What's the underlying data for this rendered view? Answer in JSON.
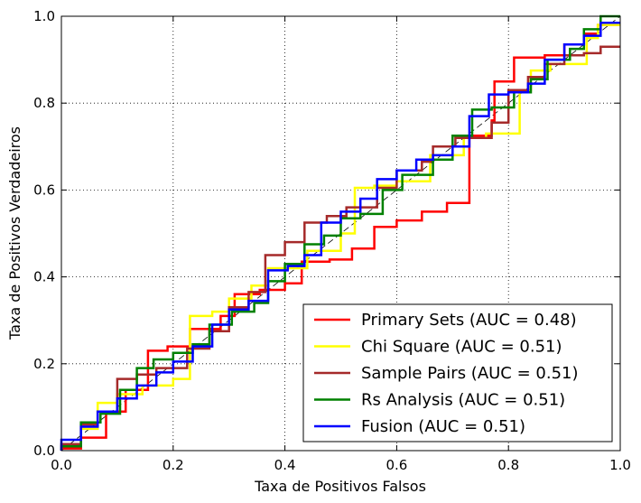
{
  "chart_data": {
    "type": "line",
    "title": "",
    "xlabel": "Taxa de Positivos Falsos",
    "ylabel": "Taxa de Positivos Verdadeiros",
    "xlim": [
      0.0,
      1.0
    ],
    "ylim": [
      0.0,
      1.0
    ],
    "xticks": [
      0.0,
      0.2,
      0.4,
      0.6,
      0.8,
      1.0
    ],
    "yticks": [
      0.0,
      0.2,
      0.4,
      0.6,
      0.8,
      1.0
    ],
    "xtick_labels": [
      "0.0",
      "0.2",
      "0.4",
      "0.6",
      "0.8",
      "1.0"
    ],
    "ytick_labels": [
      "0.0",
      "0.2",
      "0.4",
      "0.6",
      "0.8",
      "1.0"
    ],
    "grid": true,
    "legend_position": "lower-right",
    "diagonal_reference": true,
    "series": [
      {
        "name": "Primary Sets (AUC = 0.48)",
        "color": "#ff0000",
        "points": [
          [
            0.0,
            0.0
          ],
          [
            0.0,
            0.005
          ],
          [
            0.035,
            0.005
          ],
          [
            0.035,
            0.03
          ],
          [
            0.08,
            0.03
          ],
          [
            0.08,
            0.09
          ],
          [
            0.115,
            0.09
          ],
          [
            0.115,
            0.14
          ],
          [
            0.155,
            0.14
          ],
          [
            0.155,
            0.19
          ],
          [
            0.155,
            0.23
          ],
          [
            0.19,
            0.23
          ],
          [
            0.19,
            0.24
          ],
          [
            0.23,
            0.24
          ],
          [
            0.23,
            0.28
          ],
          [
            0.285,
            0.28
          ],
          [
            0.285,
            0.31
          ],
          [
            0.31,
            0.31
          ],
          [
            0.31,
            0.36
          ],
          [
            0.355,
            0.36
          ],
          [
            0.355,
            0.37
          ],
          [
            0.4,
            0.37
          ],
          [
            0.4,
            0.385
          ],
          [
            0.43,
            0.385
          ],
          [
            0.43,
            0.435
          ],
          [
            0.48,
            0.435
          ],
          [
            0.48,
            0.44
          ],
          [
            0.52,
            0.44
          ],
          [
            0.52,
            0.465
          ],
          [
            0.56,
            0.465
          ],
          [
            0.56,
            0.515
          ],
          [
            0.6,
            0.515
          ],
          [
            0.6,
            0.53
          ],
          [
            0.645,
            0.53
          ],
          [
            0.645,
            0.55
          ],
          [
            0.69,
            0.55
          ],
          [
            0.69,
            0.57
          ],
          [
            0.73,
            0.57
          ],
          [
            0.73,
            0.725
          ],
          [
            0.77,
            0.725
          ],
          [
            0.77,
            0.76
          ],
          [
            0.775,
            0.76
          ],
          [
            0.775,
            0.85
          ],
          [
            0.81,
            0.85
          ],
          [
            0.81,
            0.905
          ],
          [
            0.865,
            0.905
          ],
          [
            0.865,
            0.91
          ],
          [
            0.9,
            0.91
          ],
          [
            0.9,
            0.935
          ],
          [
            0.935,
            0.935
          ],
          [
            0.935,
            0.96
          ],
          [
            0.96,
            0.96
          ],
          [
            0.96,
            0.98
          ],
          [
            1.0,
            0.98
          ]
        ]
      },
      {
        "name": "Chi Square (AUC = 0.51)",
        "color": "#ffff00",
        "points": [
          [
            0.0,
            0.0
          ],
          [
            0.0,
            0.015
          ],
          [
            0.035,
            0.015
          ],
          [
            0.035,
            0.05
          ],
          [
            0.065,
            0.05
          ],
          [
            0.065,
            0.11
          ],
          [
            0.1,
            0.11
          ],
          [
            0.1,
            0.13
          ],
          [
            0.145,
            0.13
          ],
          [
            0.145,
            0.15
          ],
          [
            0.2,
            0.15
          ],
          [
            0.2,
            0.165
          ],
          [
            0.23,
            0.165
          ],
          [
            0.23,
            0.31
          ],
          [
            0.27,
            0.31
          ],
          [
            0.27,
            0.32
          ],
          [
            0.3,
            0.32
          ],
          [
            0.3,
            0.35
          ],
          [
            0.34,
            0.35
          ],
          [
            0.34,
            0.38
          ],
          [
            0.37,
            0.38
          ],
          [
            0.37,
            0.42
          ],
          [
            0.44,
            0.42
          ],
          [
            0.44,
            0.46
          ],
          [
            0.5,
            0.46
          ],
          [
            0.5,
            0.5
          ],
          [
            0.525,
            0.5
          ],
          [
            0.525,
            0.605
          ],
          [
            0.56,
            0.605
          ],
          [
            0.56,
            0.61
          ],
          [
            0.6,
            0.61
          ],
          [
            0.6,
            0.62
          ],
          [
            0.66,
            0.62
          ],
          [
            0.66,
            0.68
          ],
          [
            0.72,
            0.68
          ],
          [
            0.72,
            0.72
          ],
          [
            0.76,
            0.72
          ],
          [
            0.76,
            0.73
          ],
          [
            0.82,
            0.73
          ],
          [
            0.82,
            0.83
          ],
          [
            0.84,
            0.83
          ],
          [
            0.84,
            0.875
          ],
          [
            0.875,
            0.875
          ],
          [
            0.875,
            0.89
          ],
          [
            0.94,
            0.89
          ],
          [
            0.94,
            0.95
          ],
          [
            0.96,
            0.95
          ],
          [
            0.96,
            0.98
          ],
          [
            1.0,
            0.98
          ]
        ]
      },
      {
        "name": "Sample Pairs (AUC = 0.51)",
        "color": "#a52a2a",
        "points": [
          [
            0.0,
            0.0
          ],
          [
            0.0,
            0.015
          ],
          [
            0.035,
            0.015
          ],
          [
            0.035,
            0.06
          ],
          [
            0.065,
            0.06
          ],
          [
            0.065,
            0.09
          ],
          [
            0.1,
            0.09
          ],
          [
            0.1,
            0.165
          ],
          [
            0.135,
            0.165
          ],
          [
            0.135,
            0.175
          ],
          [
            0.17,
            0.175
          ],
          [
            0.17,
            0.19
          ],
          [
            0.225,
            0.19
          ],
          [
            0.225,
            0.235
          ],
          [
            0.265,
            0.235
          ],
          [
            0.265,
            0.275
          ],
          [
            0.3,
            0.275
          ],
          [
            0.3,
            0.33
          ],
          [
            0.335,
            0.33
          ],
          [
            0.335,
            0.365
          ],
          [
            0.365,
            0.365
          ],
          [
            0.365,
            0.45
          ],
          [
            0.4,
            0.45
          ],
          [
            0.4,
            0.48
          ],
          [
            0.435,
            0.48
          ],
          [
            0.435,
            0.525
          ],
          [
            0.475,
            0.525
          ],
          [
            0.475,
            0.54
          ],
          [
            0.51,
            0.54
          ],
          [
            0.51,
            0.56
          ],
          [
            0.565,
            0.56
          ],
          [
            0.565,
            0.605
          ],
          [
            0.6,
            0.605
          ],
          [
            0.6,
            0.645
          ],
          [
            0.645,
            0.645
          ],
          [
            0.645,
            0.665
          ],
          [
            0.665,
            0.665
          ],
          [
            0.665,
            0.7
          ],
          [
            0.705,
            0.7
          ],
          [
            0.705,
            0.72
          ],
          [
            0.77,
            0.72
          ],
          [
            0.77,
            0.755
          ],
          [
            0.8,
            0.755
          ],
          [
            0.8,
            0.83
          ],
          [
            0.835,
            0.83
          ],
          [
            0.835,
            0.86
          ],
          [
            0.865,
            0.86
          ],
          [
            0.865,
            0.89
          ],
          [
            0.9,
            0.89
          ],
          [
            0.9,
            0.91
          ],
          [
            0.935,
            0.91
          ],
          [
            0.935,
            0.915
          ],
          [
            0.965,
            0.915
          ],
          [
            0.965,
            0.93
          ],
          [
            1.0,
            0.93
          ]
        ]
      },
      {
        "name": "Rs Analysis (AUC = 0.51)",
        "color": "#008000",
        "points": [
          [
            0.0,
            0.0
          ],
          [
            0.0,
            0.01
          ],
          [
            0.035,
            0.01
          ],
          [
            0.035,
            0.065
          ],
          [
            0.07,
            0.065
          ],
          [
            0.07,
            0.085
          ],
          [
            0.105,
            0.085
          ],
          [
            0.105,
            0.14
          ],
          [
            0.135,
            0.14
          ],
          [
            0.135,
            0.19
          ],
          [
            0.165,
            0.19
          ],
          [
            0.165,
            0.21
          ],
          [
            0.2,
            0.21
          ],
          [
            0.2,
            0.225
          ],
          [
            0.235,
            0.225
          ],
          [
            0.235,
            0.245
          ],
          [
            0.265,
            0.245
          ],
          [
            0.265,
            0.29
          ],
          [
            0.305,
            0.29
          ],
          [
            0.305,
            0.32
          ],
          [
            0.345,
            0.32
          ],
          [
            0.345,
            0.34
          ],
          [
            0.37,
            0.34
          ],
          [
            0.37,
            0.39
          ],
          [
            0.4,
            0.39
          ],
          [
            0.4,
            0.43
          ],
          [
            0.435,
            0.43
          ],
          [
            0.435,
            0.475
          ],
          [
            0.47,
            0.475
          ],
          [
            0.47,
            0.495
          ],
          [
            0.5,
            0.495
          ],
          [
            0.5,
            0.535
          ],
          [
            0.535,
            0.535
          ],
          [
            0.535,
            0.545
          ],
          [
            0.575,
            0.545
          ],
          [
            0.575,
            0.6
          ],
          [
            0.61,
            0.6
          ],
          [
            0.61,
            0.635
          ],
          [
            0.665,
            0.635
          ],
          [
            0.665,
            0.67
          ],
          [
            0.7,
            0.67
          ],
          [
            0.7,
            0.725
          ],
          [
            0.735,
            0.725
          ],
          [
            0.735,
            0.785
          ],
          [
            0.77,
            0.785
          ],
          [
            0.77,
            0.79
          ],
          [
            0.81,
            0.79
          ],
          [
            0.81,
            0.825
          ],
          [
            0.84,
            0.825
          ],
          [
            0.84,
            0.855
          ],
          [
            0.87,
            0.855
          ],
          [
            0.87,
            0.9
          ],
          [
            0.91,
            0.9
          ],
          [
            0.91,
            0.925
          ],
          [
            0.935,
            0.925
          ],
          [
            0.935,
            0.97
          ],
          [
            0.965,
            0.97
          ],
          [
            0.965,
            1.0
          ],
          [
            1.0,
            1.0
          ]
        ]
      },
      {
        "name": "Fusion (AUC = 0.51)",
        "color": "#0000ff",
        "points": [
          [
            0.0,
            0.0
          ],
          [
            0.0,
            0.025
          ],
          [
            0.035,
            0.025
          ],
          [
            0.035,
            0.055
          ],
          [
            0.065,
            0.055
          ],
          [
            0.065,
            0.09
          ],
          [
            0.1,
            0.09
          ],
          [
            0.1,
            0.12
          ],
          [
            0.135,
            0.12
          ],
          [
            0.135,
            0.15
          ],
          [
            0.17,
            0.15
          ],
          [
            0.17,
            0.18
          ],
          [
            0.2,
            0.18
          ],
          [
            0.2,
            0.205
          ],
          [
            0.235,
            0.205
          ],
          [
            0.235,
            0.24
          ],
          [
            0.27,
            0.24
          ],
          [
            0.27,
            0.29
          ],
          [
            0.3,
            0.29
          ],
          [
            0.3,
            0.325
          ],
          [
            0.335,
            0.325
          ],
          [
            0.335,
            0.345
          ],
          [
            0.37,
            0.345
          ],
          [
            0.37,
            0.415
          ],
          [
            0.405,
            0.415
          ],
          [
            0.405,
            0.425
          ],
          [
            0.435,
            0.425
          ],
          [
            0.435,
            0.45
          ],
          [
            0.465,
            0.45
          ],
          [
            0.465,
            0.525
          ],
          [
            0.5,
            0.525
          ],
          [
            0.5,
            0.55
          ],
          [
            0.535,
            0.55
          ],
          [
            0.535,
            0.58
          ],
          [
            0.565,
            0.58
          ],
          [
            0.565,
            0.625
          ],
          [
            0.6,
            0.625
          ],
          [
            0.6,
            0.645
          ],
          [
            0.635,
            0.645
          ],
          [
            0.635,
            0.67
          ],
          [
            0.665,
            0.67
          ],
          [
            0.665,
            0.68
          ],
          [
            0.7,
            0.68
          ],
          [
            0.7,
            0.7
          ],
          [
            0.73,
            0.7
          ],
          [
            0.73,
            0.77
          ],
          [
            0.765,
            0.77
          ],
          [
            0.765,
            0.82
          ],
          [
            0.8,
            0.82
          ],
          [
            0.8,
            0.825
          ],
          [
            0.835,
            0.825
          ],
          [
            0.835,
            0.845
          ],
          [
            0.865,
            0.845
          ],
          [
            0.865,
            0.9
          ],
          [
            0.9,
            0.9
          ],
          [
            0.9,
            0.935
          ],
          [
            0.935,
            0.935
          ],
          [
            0.935,
            0.955
          ],
          [
            0.965,
            0.955
          ],
          [
            0.965,
            0.985
          ],
          [
            1.0,
            0.985
          ]
        ]
      }
    ]
  }
}
